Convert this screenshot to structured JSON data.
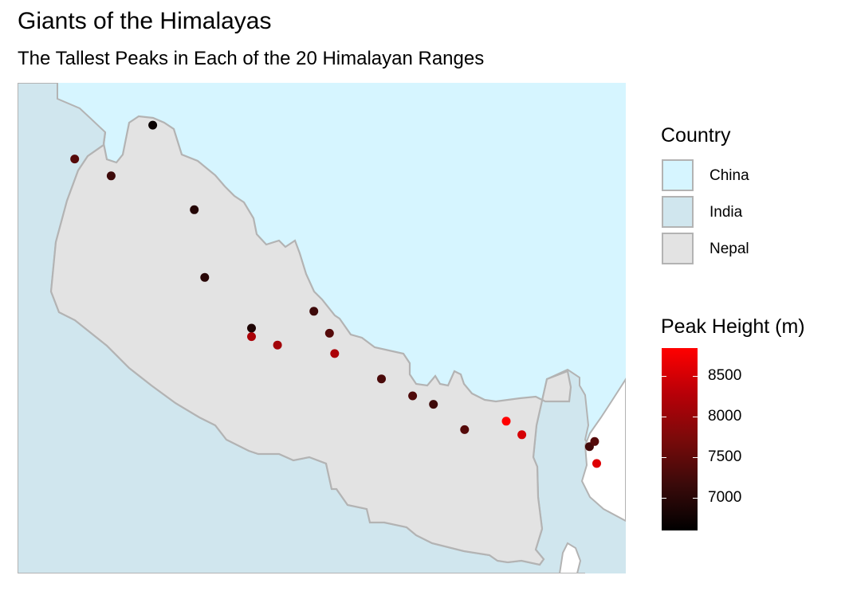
{
  "title": "Giants of the Himalayas",
  "subtitle": "The Tallest Peaks in Each of the 20 Himalayan Ranges",
  "colors": {
    "china": "#d6f5ff",
    "india": "#d0e6ee",
    "nepal": "#e3e3e3",
    "border": "#b3b3b3",
    "height_low": "#000000",
    "height_high": "#ff0000"
  },
  "legend": {
    "country": {
      "title": "Country",
      "items": [
        {
          "label": "China",
          "color": "#d6f5ff"
        },
        {
          "label": "India",
          "color": "#d0e6ee"
        },
        {
          "label": "Nepal",
          "color": "#e3e3e3"
        }
      ]
    },
    "height": {
      "title": "Peak Height (m)",
      "range": [
        6600,
        8848
      ],
      "ticks": [
        "8500",
        "8000",
        "7500",
        "7000"
      ],
      "tick_values": [
        8500,
        8000,
        7500,
        7000
      ]
    }
  },
  "peaks": [
    {
      "lon": 80.6,
      "lat": 30.15,
      "height": 7400
    },
    {
      "lon": 80.95,
      "lat": 30.05,
      "height": 7200
    },
    {
      "lon": 81.35,
      "lat": 30.35,
      "height": 6700
    },
    {
      "lon": 81.75,
      "lat": 29.85,
      "height": 6950
    },
    {
      "lon": 81.85,
      "lat": 29.45,
      "height": 7000
    },
    {
      "lon": 82.3,
      "lat": 29.15,
      "height": 6900
    },
    {
      "lon": 82.3,
      "lat": 29.1,
      "height": 8163
    },
    {
      "lon": 82.55,
      "lat": 29.05,
      "height": 8091
    },
    {
      "lon": 82.9,
      "lat": 29.25,
      "height": 7200
    },
    {
      "lon": 83.05,
      "lat": 29.12,
      "height": 7400
    },
    {
      "lon": 83.1,
      "lat": 29.0,
      "height": 8167
    },
    {
      "lon": 83.55,
      "lat": 28.85,
      "height": 7300
    },
    {
      "lon": 83.85,
      "lat": 28.75,
      "height": 7350
    },
    {
      "lon": 84.05,
      "lat": 28.7,
      "height": 7200
    },
    {
      "lon": 84.35,
      "lat": 28.55,
      "height": 7400
    },
    {
      "lon": 84.75,
      "lat": 28.6,
      "height": 8848
    },
    {
      "lon": 84.9,
      "lat": 28.52,
      "height": 8516
    },
    {
      "lon": 85.55,
      "lat": 28.45,
      "height": 7250
    },
    {
      "lon": 85.6,
      "lat": 28.48,
      "height": 7400
    },
    {
      "lon": 85.62,
      "lat": 28.35,
      "height": 8586
    }
  ]
}
